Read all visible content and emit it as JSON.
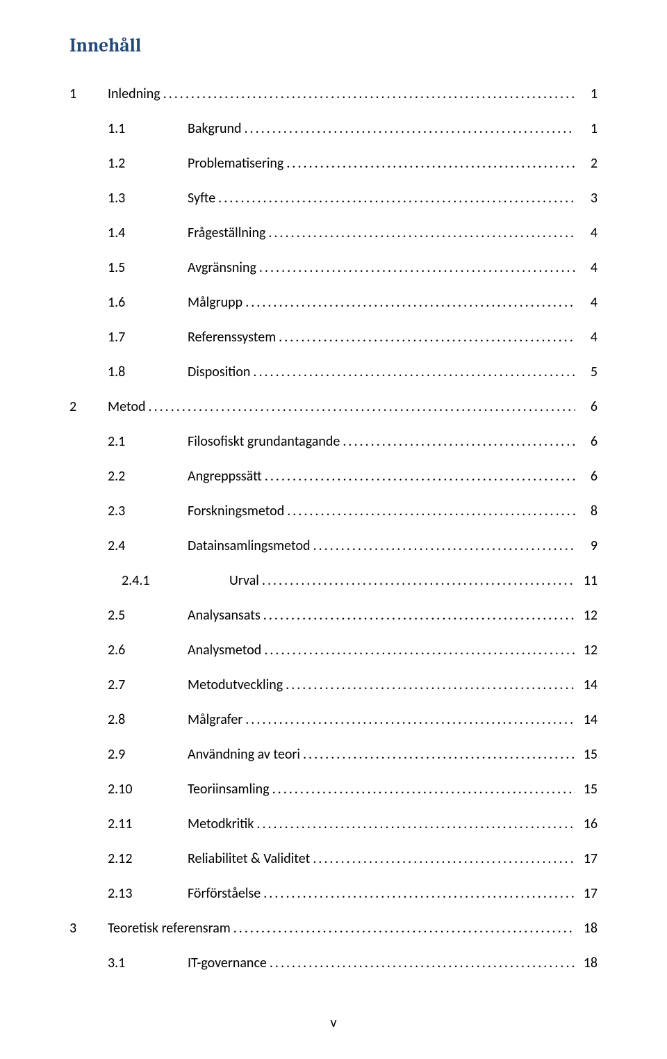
{
  "title": {
    "text": "Innehåll",
    "color": "#1f497d"
  },
  "footer": {
    "pageLabel": "v"
  },
  "toc": {
    "entries": [
      {
        "level": 1,
        "num": "1",
        "label": "Inledning",
        "page": "1"
      },
      {
        "level": 2,
        "num": "1.1",
        "label": "Bakgrund",
        "page": "1"
      },
      {
        "level": 2,
        "num": "1.2",
        "label": "Problematisering",
        "page": "2"
      },
      {
        "level": 2,
        "num": "1.3",
        "label": "Syfte",
        "page": "3"
      },
      {
        "level": 2,
        "num": "1.4",
        "label": "Frågeställning",
        "page": "4"
      },
      {
        "level": 2,
        "num": "1.5",
        "label": "Avgränsning",
        "page": "4"
      },
      {
        "level": 2,
        "num": "1.6",
        "label": "Målgrupp",
        "page": "4"
      },
      {
        "level": 2,
        "num": "1.7",
        "label": "Referenssystem",
        "page": "4"
      },
      {
        "level": 2,
        "num": "1.8",
        "label": "Disposition",
        "page": "5"
      },
      {
        "level": 1,
        "num": "2",
        "label": "Metod",
        "page": "6"
      },
      {
        "level": 2,
        "num": "2.1",
        "label": "Filosofiskt grundantagande",
        "page": "6"
      },
      {
        "level": 2,
        "num": "2.2",
        "label": "Angreppssätt",
        "page": "6"
      },
      {
        "level": 2,
        "num": "2.3",
        "label": "Forskningsmetod",
        "page": "8"
      },
      {
        "level": 2,
        "num": "2.4",
        "label": "Datainsamlingsmetod",
        "page": "9"
      },
      {
        "level": 3,
        "num": "2.4.1",
        "label": "Urval",
        "page": "11"
      },
      {
        "level": 2,
        "num": "2.5",
        "label": "Analysansats",
        "page": "12"
      },
      {
        "level": 2,
        "num": "2.6",
        "label": "Analysmetod",
        "page": "12"
      },
      {
        "level": 2,
        "num": "2.7",
        "label": "Metodutveckling",
        "page": "14"
      },
      {
        "level": 2,
        "num": "2.8",
        "label": "Målgrafer",
        "page": "14"
      },
      {
        "level": 2,
        "num": "2.9",
        "label": "Användning av teori",
        "page": "15"
      },
      {
        "level": 2,
        "num": "2.10",
        "label": "Teoriinsamling",
        "page": "15"
      },
      {
        "level": 2,
        "num": "2.11",
        "label": "Metodkritik",
        "page": "16"
      },
      {
        "level": 2,
        "num": "2.12",
        "label": "Reliabilitet & Validitet",
        "page": "17"
      },
      {
        "level": 2,
        "num": "2.13",
        "label": "Förförståelse",
        "page": "17"
      },
      {
        "level": 1,
        "num": "3",
        "label": "Teoretisk referensram",
        "page": "18"
      },
      {
        "level": 2,
        "num": "3.1",
        "label": "IT-governance",
        "page": "18"
      }
    ]
  }
}
